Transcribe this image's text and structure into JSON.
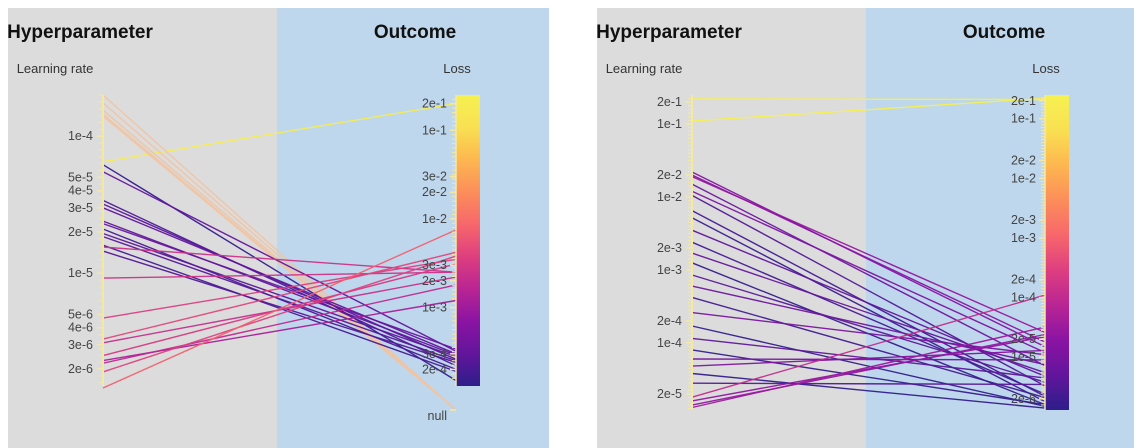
{
  "colors": {
    "hyper_bg": "#dcdcdc",
    "outcome_bg": "#bed7ec",
    "axis": "#f3e9a5",
    "colormap": [
      "#2d1e8a",
      "#62159c",
      "#8b14a3",
      "#b92593",
      "#de3f7f",
      "#f7676b",
      "#fc8e5a",
      "#fdb750",
      "#f9e052",
      "#f6f151"
    ]
  },
  "panels": [
    {
      "header_hyper": "Hyperparameter",
      "header_outcome": "Outcome",
      "axis_left_label": "Learning rate",
      "axis_right_label": "Loss",
      "left_ticks": [
        "1e-4",
        "5e-5",
        "4e-5",
        "3e-5",
        "2e-5",
        "1e-5",
        "5e-6",
        "4e-6",
        "3e-6",
        "2e-6"
      ],
      "right_ticks": [
        "2e-1",
        "1e-1",
        "3e-2",
        "2e-2",
        "1e-2",
        "3e-3",
        "2e-3",
        "1e-3",
        "3e-4",
        "2e-4",
        "null"
      ]
    },
    {
      "header_hyper": "Hyperparameter",
      "header_outcome": "Outcome",
      "axis_left_label": "Learning rate",
      "axis_right_label": "Loss",
      "left_ticks": [
        "2e-1",
        "1e-1",
        "2e-2",
        "1e-2",
        "2e-3",
        "1e-3",
        "2e-4",
        "1e-4",
        "2e-5"
      ],
      "right_ticks": [
        "2e-1",
        "1e-1",
        "2e-2",
        "1e-2",
        "2e-3",
        "1e-3",
        "2e-4",
        "1e-4",
        "2e-5",
        "1e-5",
        "2e-6"
      ]
    }
  ],
  "chart_data": [
    {
      "type": "parallel-coordinates",
      "axes": [
        "Learning rate",
        "Loss"
      ],
      "left_scale": "log",
      "right_scale": "log",
      "left_range": [
        1.5e-06,
        0.0002
      ],
      "right_range": [
        0.00013,
        0.25
      ],
      "right_has_null": true,
      "colorbar_range": [
        0.00013,
        0.25
      ],
      "lines": [
        {
          "lr": 6.5e-05,
          "loss": 0.2
        },
        {
          "lr": 0.0002,
          "loss": null
        },
        {
          "lr": 0.000175,
          "loss": null
        },
        {
          "lr": 0.000155,
          "loss": null
        },
        {
          "lr": 0.000145,
          "loss": null
        },
        {
          "lr": 0.00014,
          "loss": null
        },
        {
          "lr": 6.2e-05,
          "loss": 0.00015
        },
        {
          "lr": 5.5e-05,
          "loss": 0.00032
        },
        {
          "lr": 3.4e-05,
          "loss": 0.00022
        },
        {
          "lr": 3.2e-05,
          "loss": 0.00026
        },
        {
          "lr": 3e-05,
          "loss": 0.0003
        },
        {
          "lr": 2.4e-05,
          "loss": 0.00029
        },
        {
          "lr": 2.3e-05,
          "loss": 0.00034
        },
        {
          "lr": 2.1e-05,
          "loss": 0.0002
        },
        {
          "lr": 1.95e-05,
          "loss": 0.00028
        },
        {
          "lr": 1.85e-05,
          "loss": 0.00025
        },
        {
          "lr": 1.6e-05,
          "loss": 0.00019
        },
        {
          "lr": 1.45e-05,
          "loss": 0.00024
        },
        {
          "lr": 1.55e-05,
          "loss": 0.0025
        },
        {
          "lr": 9.2e-06,
          "loss": 0.0025
        },
        {
          "lr": 4.7e-06,
          "loss": 0.0035
        },
        {
          "lr": 3.3e-06,
          "loss": 0.0042
        },
        {
          "lr": 3.1e-06,
          "loss": 0.0022
        },
        {
          "lr": 2.5e-06,
          "loss": 0.0031
        },
        {
          "lr": 2.3e-06,
          "loss": 0.0012
        },
        {
          "lr": 2.2e-06,
          "loss": 0.0018
        },
        {
          "lr": 1.9e-06,
          "loss": 0.0038
        },
        {
          "lr": 1.45e-06,
          "loss": 0.0075
        }
      ]
    },
    {
      "type": "parallel-coordinates",
      "axes": [
        "Learning rate",
        "Loss"
      ],
      "left_scale": "log",
      "right_scale": "log",
      "left_range": [
        1.2e-05,
        0.25
      ],
      "right_range": [
        1.3e-06,
        0.25
      ],
      "right_has_null": false,
      "colorbar_range": [
        1.3e-06,
        0.25
      ],
      "lines": [
        {
          "lr": 0.22,
          "loss": 0.21
        },
        {
          "lr": 0.11,
          "loss": 0.22
        },
        {
          "lr": 0.022,
          "loss": 1.5e-05
        },
        {
          "lr": 0.02,
          "loss": 1.8e-05
        },
        {
          "lr": 0.019,
          "loss": 2.6e-05
        },
        {
          "lr": 0.015,
          "loss": 7.2e-06
        },
        {
          "lr": 0.012,
          "loss": 1.2e-05
        },
        {
          "lr": 0.0105,
          "loss": 3.3e-06
        },
        {
          "lr": 0.0065,
          "loss": 2.2e-06
        },
        {
          "lr": 0.0052,
          "loss": 1.8e-06
        },
        {
          "lr": 0.0035,
          "loss": 4.8e-06
        },
        {
          "lr": 0.0024,
          "loss": 2.4e-06
        },
        {
          "lr": 0.0017,
          "loss": 5.5e-06
        },
        {
          "lr": 0.00125,
          "loss": 1.6e-06
        },
        {
          "lr": 0.00085,
          "loss": 3.8e-06
        },
        {
          "lr": 0.0006,
          "loss": 7.5e-06
        },
        {
          "lr": 0.00042,
          "loss": 2.1e-06
        },
        {
          "lr": 0.00026,
          "loss": 1.1e-05
        },
        {
          "lr": 0.00017,
          "loss": 1.5e-06
        },
        {
          "lr": 0.000115,
          "loss": 4.5e-06
        },
        {
          "lr": 8e-05,
          "loss": 1.6e-06
        },
        {
          "lr": 6e-05,
          "loss": 9e-06
        },
        {
          "lr": 4.8e-05,
          "loss": 1.3e-05
        },
        {
          "lr": 3.8e-05,
          "loss": 1.4e-06
        },
        {
          "lr": 2.8e-05,
          "loss": 3.5e-06
        },
        {
          "lr": 1.8e-05,
          "loss": 0.00011
        },
        {
          "lr": 1.6e-05,
          "loss": 2.2e-05
        },
        {
          "lr": 1.4e-05,
          "loss": 2.4e-05
        },
        {
          "lr": 1.3e-05,
          "loss": 3.2e-05
        }
      ]
    }
  ]
}
